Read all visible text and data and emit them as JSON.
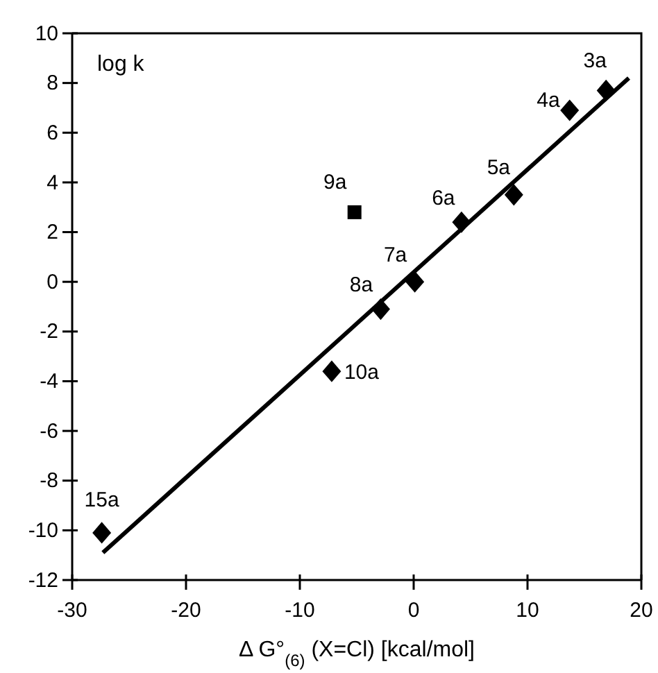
{
  "chart_data": {
    "type": "scatter",
    "xlabel": "Δ G°$_{(6)}$ (X=Cl) [kcal/mol]",
    "ylabel": "log k",
    "xlim": [
      -30,
      20
    ],
    "xticks": [
      -30,
      -20,
      -10,
      0,
      10,
      20
    ],
    "ylim": [
      -12,
      10
    ],
    "yticks": [
      -12,
      -10,
      -8,
      -6,
      -4,
      -2,
      0,
      2,
      4,
      6,
      8,
      10
    ],
    "series": [
      {
        "type": "line",
        "color": "#000000",
        "line_style": "solid",
        "marker": "none",
        "x": [
          -27.3,
          18.9
        ],
        "values": [
          -10.9,
          8.2
        ]
      },
      {
        "type": "scatter",
        "color": "#000000",
        "marker": "diamond",
        "x": [
          16.9,
          13.7,
          8.8,
          4.2,
          0.1,
          -2.9,
          -7.2,
          -27.4
        ],
        "values": [
          7.7,
          6.9,
          3.5,
          2.4,
          0,
          -1.1,
          -3.6,
          -10.1
        ]
      },
      {
        "type": "scatter",
        "color": "#000000",
        "marker": "square",
        "x": [
          -5.2
        ],
        "values": [
          2.8
        ]
      }
    ],
    "annotations": [
      {
        "text": "3a",
        "x": 16.9,
        "y": 7.7
      },
      {
        "text": "4a",
        "x": 13.7,
        "y": 6.9
      },
      {
        "text": "5a",
        "x": 8.8,
        "y": 3.5
      },
      {
        "text": "6a",
        "x": 4.2,
        "y": 2.4
      },
      {
        "text": "7a",
        "x": 0.1,
        "y": 0
      },
      {
        "text": "8a",
        "x": -2.9,
        "y": -1.1
      },
      {
        "text": "9a",
        "x": -5.2,
        "y": 2.8
      },
      {
        "text": "10a",
        "x": -7.2,
        "y": -3.6
      },
      {
        "text": "15a",
        "x": -27.4,
        "y": -10.1
      }
    ]
  }
}
